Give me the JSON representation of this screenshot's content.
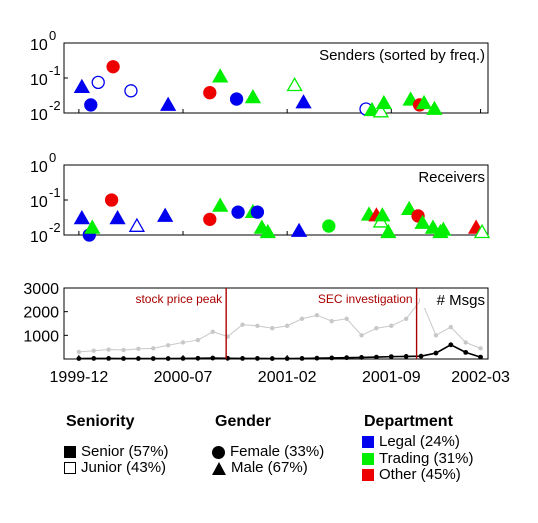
{
  "colors": {
    "Legal": "#0000ee",
    "Trading": "#00ee00",
    "Other": "#ee0000",
    "annotation": "#aa0000",
    "total_line": "#c8c8c8",
    "msgs_line": "#000000"
  },
  "chart_data": [
    {
      "type": "scatter",
      "title": "Senders (sorted by freq.)",
      "yscale": "log",
      "ylim": [
        0.01,
        1
      ],
      "ytick_labels": [
        "10",
        "10",
        "10"
      ],
      "ytick_exponents": [
        "0",
        "-1",
        "-2"
      ],
      "points": [
        {
          "x": 0.2,
          "y": 0.055,
          "shape": "triangle",
          "filled": true,
          "dept": "Legal"
        },
        {
          "x": 0.8,
          "y": 0.017,
          "shape": "circle",
          "filled": true,
          "dept": "Legal"
        },
        {
          "x": 1.3,
          "y": 0.075,
          "shape": "circle",
          "filled": false,
          "dept": "Legal"
        },
        {
          "x": 2.3,
          "y": 0.21,
          "shape": "circle",
          "filled": true,
          "dept": "Other"
        },
        {
          "x": 3.5,
          "y": 0.043,
          "shape": "circle",
          "filled": false,
          "dept": "Legal"
        },
        {
          "x": 6.0,
          "y": 0.017,
          "shape": "triangle",
          "filled": true,
          "dept": "Legal"
        },
        {
          "x": 8.8,
          "y": 0.038,
          "shape": "circle",
          "filled": true,
          "dept": "Other"
        },
        {
          "x": 9.5,
          "y": 0.11,
          "shape": "triangle",
          "filled": true,
          "dept": "Trading"
        },
        {
          "x": 10.6,
          "y": 0.025,
          "shape": "circle",
          "filled": true,
          "dept": "Legal"
        },
        {
          "x": 11.7,
          "y": 0.028,
          "shape": "triangle",
          "filled": true,
          "dept": "Trading"
        },
        {
          "x": 14.5,
          "y": 0.062,
          "shape": "triangle",
          "filled": false,
          "dept": "Trading"
        },
        {
          "x": 15.1,
          "y": 0.02,
          "shape": "triangle",
          "filled": true,
          "dept": "Legal"
        },
        {
          "x": 19.3,
          "y": 0.013,
          "shape": "circle",
          "filled": false,
          "dept": "Legal"
        },
        {
          "x": 19.7,
          "y": 0.012,
          "shape": "triangle",
          "filled": true,
          "dept": "Trading"
        },
        {
          "x": 20.3,
          "y": 0.011,
          "shape": "triangle",
          "filled": false,
          "dept": "Trading"
        },
        {
          "x": 20.5,
          "y": 0.019,
          "shape": "triangle",
          "filled": true,
          "dept": "Trading"
        },
        {
          "x": 22.3,
          "y": 0.024,
          "shape": "triangle",
          "filled": true,
          "dept": "Trading"
        },
        {
          "x": 22.9,
          "y": 0.017,
          "shape": "circle",
          "filled": true,
          "dept": "Other"
        },
        {
          "x": 23.2,
          "y": 0.019,
          "shape": "triangle",
          "filled": true,
          "dept": "Trading"
        },
        {
          "x": 23.9,
          "y": 0.013,
          "shape": "triangle",
          "filled": true,
          "dept": "Trading"
        }
      ]
    },
    {
      "type": "scatter",
      "title": "Receivers",
      "yscale": "log",
      "ylim": [
        0.01,
        1
      ],
      "ytick_labels": [
        "10",
        "10",
        "10"
      ],
      "ytick_exponents": [
        "0",
        "-1",
        "-2"
      ],
      "points": [
        {
          "x": 0.2,
          "y": 0.03,
          "shape": "triangle",
          "filled": true,
          "dept": "Legal"
        },
        {
          "x": 0.7,
          "y": 0.01,
          "shape": "circle",
          "filled": true,
          "dept": "Legal"
        },
        {
          "x": 0.9,
          "y": 0.016,
          "shape": "triangle",
          "filled": true,
          "dept": "Trading"
        },
        {
          "x": 2.2,
          "y": 0.1,
          "shape": "circle",
          "filled": true,
          "dept": "Other"
        },
        {
          "x": 2.6,
          "y": 0.03,
          "shape": "triangle",
          "filled": true,
          "dept": "Legal"
        },
        {
          "x": 3.9,
          "y": 0.018,
          "shape": "triangle",
          "filled": false,
          "dept": "Legal"
        },
        {
          "x": 5.8,
          "y": 0.035,
          "shape": "triangle",
          "filled": true,
          "dept": "Legal"
        },
        {
          "x": 8.8,
          "y": 0.028,
          "shape": "circle",
          "filled": true,
          "dept": "Other"
        },
        {
          "x": 9.5,
          "y": 0.068,
          "shape": "triangle",
          "filled": true,
          "dept": "Trading"
        },
        {
          "x": 10.7,
          "y": 0.045,
          "shape": "circle",
          "filled": true,
          "dept": "Legal"
        },
        {
          "x": 11.7,
          "y": 0.045,
          "shape": "triangle",
          "filled": true,
          "dept": "Trading"
        },
        {
          "x": 12.0,
          "y": 0.045,
          "shape": "circle",
          "filled": true,
          "dept": "Legal"
        },
        {
          "x": 12.3,
          "y": 0.016,
          "shape": "triangle",
          "filled": true,
          "dept": "Trading"
        },
        {
          "x": 12.7,
          "y": 0.012,
          "shape": "triangle",
          "filled": true,
          "dept": "Trading"
        },
        {
          "x": 14.8,
          "y": 0.013,
          "shape": "triangle",
          "filled": true,
          "dept": "Legal"
        },
        {
          "x": 16.8,
          "y": 0.018,
          "shape": "circle",
          "filled": true,
          "dept": "Trading"
        },
        {
          "x": 19.5,
          "y": 0.038,
          "shape": "triangle",
          "filled": true,
          "dept": "Trading"
        },
        {
          "x": 20.0,
          "y": 0.036,
          "shape": "triangle",
          "filled": true,
          "dept": "Other"
        },
        {
          "x": 20.3,
          "y": 0.024,
          "shape": "triangle",
          "filled": false,
          "dept": "Trading"
        },
        {
          "x": 20.4,
          "y": 0.036,
          "shape": "triangle",
          "filled": true,
          "dept": "Trading"
        },
        {
          "x": 20.8,
          "y": 0.012,
          "shape": "triangle",
          "filled": true,
          "dept": "Trading"
        },
        {
          "x": 22.2,
          "y": 0.055,
          "shape": "triangle",
          "filled": true,
          "dept": "Trading"
        },
        {
          "x": 22.8,
          "y": 0.035,
          "shape": "circle",
          "filled": true,
          "dept": "Other"
        },
        {
          "x": 23.1,
          "y": 0.022,
          "shape": "triangle",
          "filled": true,
          "dept": "Trading"
        },
        {
          "x": 23.8,
          "y": 0.016,
          "shape": "triangle",
          "filled": true,
          "dept": "Trading"
        },
        {
          "x": 24.3,
          "y": 0.012,
          "shape": "triangle",
          "filled": true,
          "dept": "Trading"
        },
        {
          "x": 24.5,
          "y": 0.014,
          "shape": "triangle",
          "filled": true,
          "dept": "Trading"
        },
        {
          "x": 26.7,
          "y": 0.016,
          "shape": "triangle",
          "filled": true,
          "dept": "Other"
        },
        {
          "x": 27.1,
          "y": 0.012,
          "shape": "triangle",
          "filled": false,
          "dept": "Trading"
        }
      ]
    },
    {
      "type": "line",
      "title": "# Msgs",
      "ylim": [
        0,
        3000
      ],
      "yticks": [
        1000,
        2000,
        3000
      ],
      "x_tick_labels": [
        "1999-12",
        "2000-07",
        "2001-02",
        "2001-09",
        "2002-03"
      ],
      "x_tick_positions": [
        0,
        7,
        14,
        21,
        27
      ],
      "xlim": [
        -1,
        27.5
      ],
      "series": [
        {
          "role": "total",
          "x": [
            0,
            1,
            2,
            3,
            4,
            5,
            6,
            7,
            8,
            9,
            10,
            11,
            12,
            13,
            14,
            15,
            16,
            17,
            18,
            19,
            20,
            21,
            22,
            23,
            24,
            25,
            26,
            27
          ],
          "values": [
            300,
            350,
            400,
            380,
            430,
            450,
            580,
            700,
            800,
            1150,
            950,
            1450,
            1400,
            1300,
            1400,
            1700,
            1850,
            1600,
            1700,
            1000,
            1300,
            1400,
            1700,
            2500,
            1000,
            1350,
            700,
            450
          ]
        },
        {
          "role": "selected",
          "x": [
            0,
            1,
            2,
            3,
            4,
            5,
            6,
            7,
            8,
            9,
            10,
            11,
            12,
            13,
            14,
            15,
            16,
            17,
            18,
            19,
            20,
            21,
            22,
            23,
            24,
            25,
            26,
            27
          ],
          "values": [
            20,
            25,
            25,
            20,
            20,
            20,
            20,
            25,
            30,
            40,
            30,
            25,
            25,
            20,
            20,
            25,
            35,
            45,
            55,
            65,
            80,
            100,
            110,
            120,
            250,
            600,
            280,
            80
          ]
        }
      ],
      "annotations": [
        {
          "label": "stock price peak",
          "x": 9.9
        },
        {
          "label": "SEC investigation",
          "x": 22.7
        }
      ]
    }
  ],
  "legend": {
    "seniority": {
      "title": "Seniority",
      "items": [
        {
          "label": "Senior (57%)",
          "marker": "square-filled"
        },
        {
          "label": "Junior (43%)",
          "marker": "square-open"
        }
      ]
    },
    "gender": {
      "title": "Gender",
      "items": [
        {
          "label": "Female (33%)",
          "marker": "circle"
        },
        {
          "label": "Male (67%)",
          "marker": "triangle"
        }
      ]
    },
    "department": {
      "title": "Department",
      "items": [
        {
          "label": "Legal (24%)",
          "dept": "Legal"
        },
        {
          "label": "Trading (31%)",
          "dept": "Trading"
        },
        {
          "label": "Other (45%)",
          "dept": "Other"
        }
      ]
    }
  }
}
